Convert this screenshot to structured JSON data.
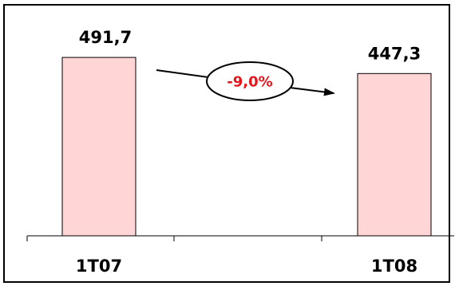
{
  "chart_data": {
    "type": "bar",
    "categories": [
      "1T07",
      "1T08"
    ],
    "values": [
      491.7,
      447.3
    ],
    "value_labels": [
      "491,7",
      "447,3"
    ],
    "ylim": [
      0,
      650
    ],
    "grid": false,
    "annotation": {
      "text": "-9,0%",
      "color": "#e8141b"
    },
    "colors": {
      "bar_fill": "#ffd5d5",
      "bar_stroke": "#000000"
    }
  }
}
